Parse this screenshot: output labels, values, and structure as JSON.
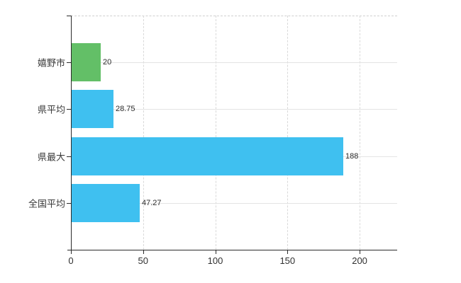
{
  "chart_data": {
    "type": "bar",
    "orientation": "horizontal",
    "title": "",
    "xlabel": "",
    "ylabel": "",
    "categories": [
      "嬉野市",
      "県平均",
      "県最大",
      "全国平均"
    ],
    "values": [
      20,
      28.75,
      188,
      47.27
    ],
    "value_labels": [
      "20",
      "28.75",
      "188",
      "47.27"
    ],
    "bar_colors": [
      "#63bf67",
      "#3fc0f0",
      "#3fc0f0",
      "#3fc0f0"
    ],
    "x_ticks": [
      0,
      50,
      100,
      150,
      200
    ],
    "x_tick_labels": [
      "0",
      "50",
      "100",
      "150",
      "200"
    ],
    "xlim": [
      0,
      226
    ],
    "grid": true,
    "legend": "none",
    "colors": {
      "axis": "#2b2b2b",
      "v_gridline": "#d9d9d9",
      "row_gridline": "#e4e4e4",
      "top_border": "#cfcfcf",
      "category_text": "#3a3a3a",
      "value_text": "#2b2b2b",
      "tick_text": "#303030",
      "background": "#ffffff"
    }
  }
}
